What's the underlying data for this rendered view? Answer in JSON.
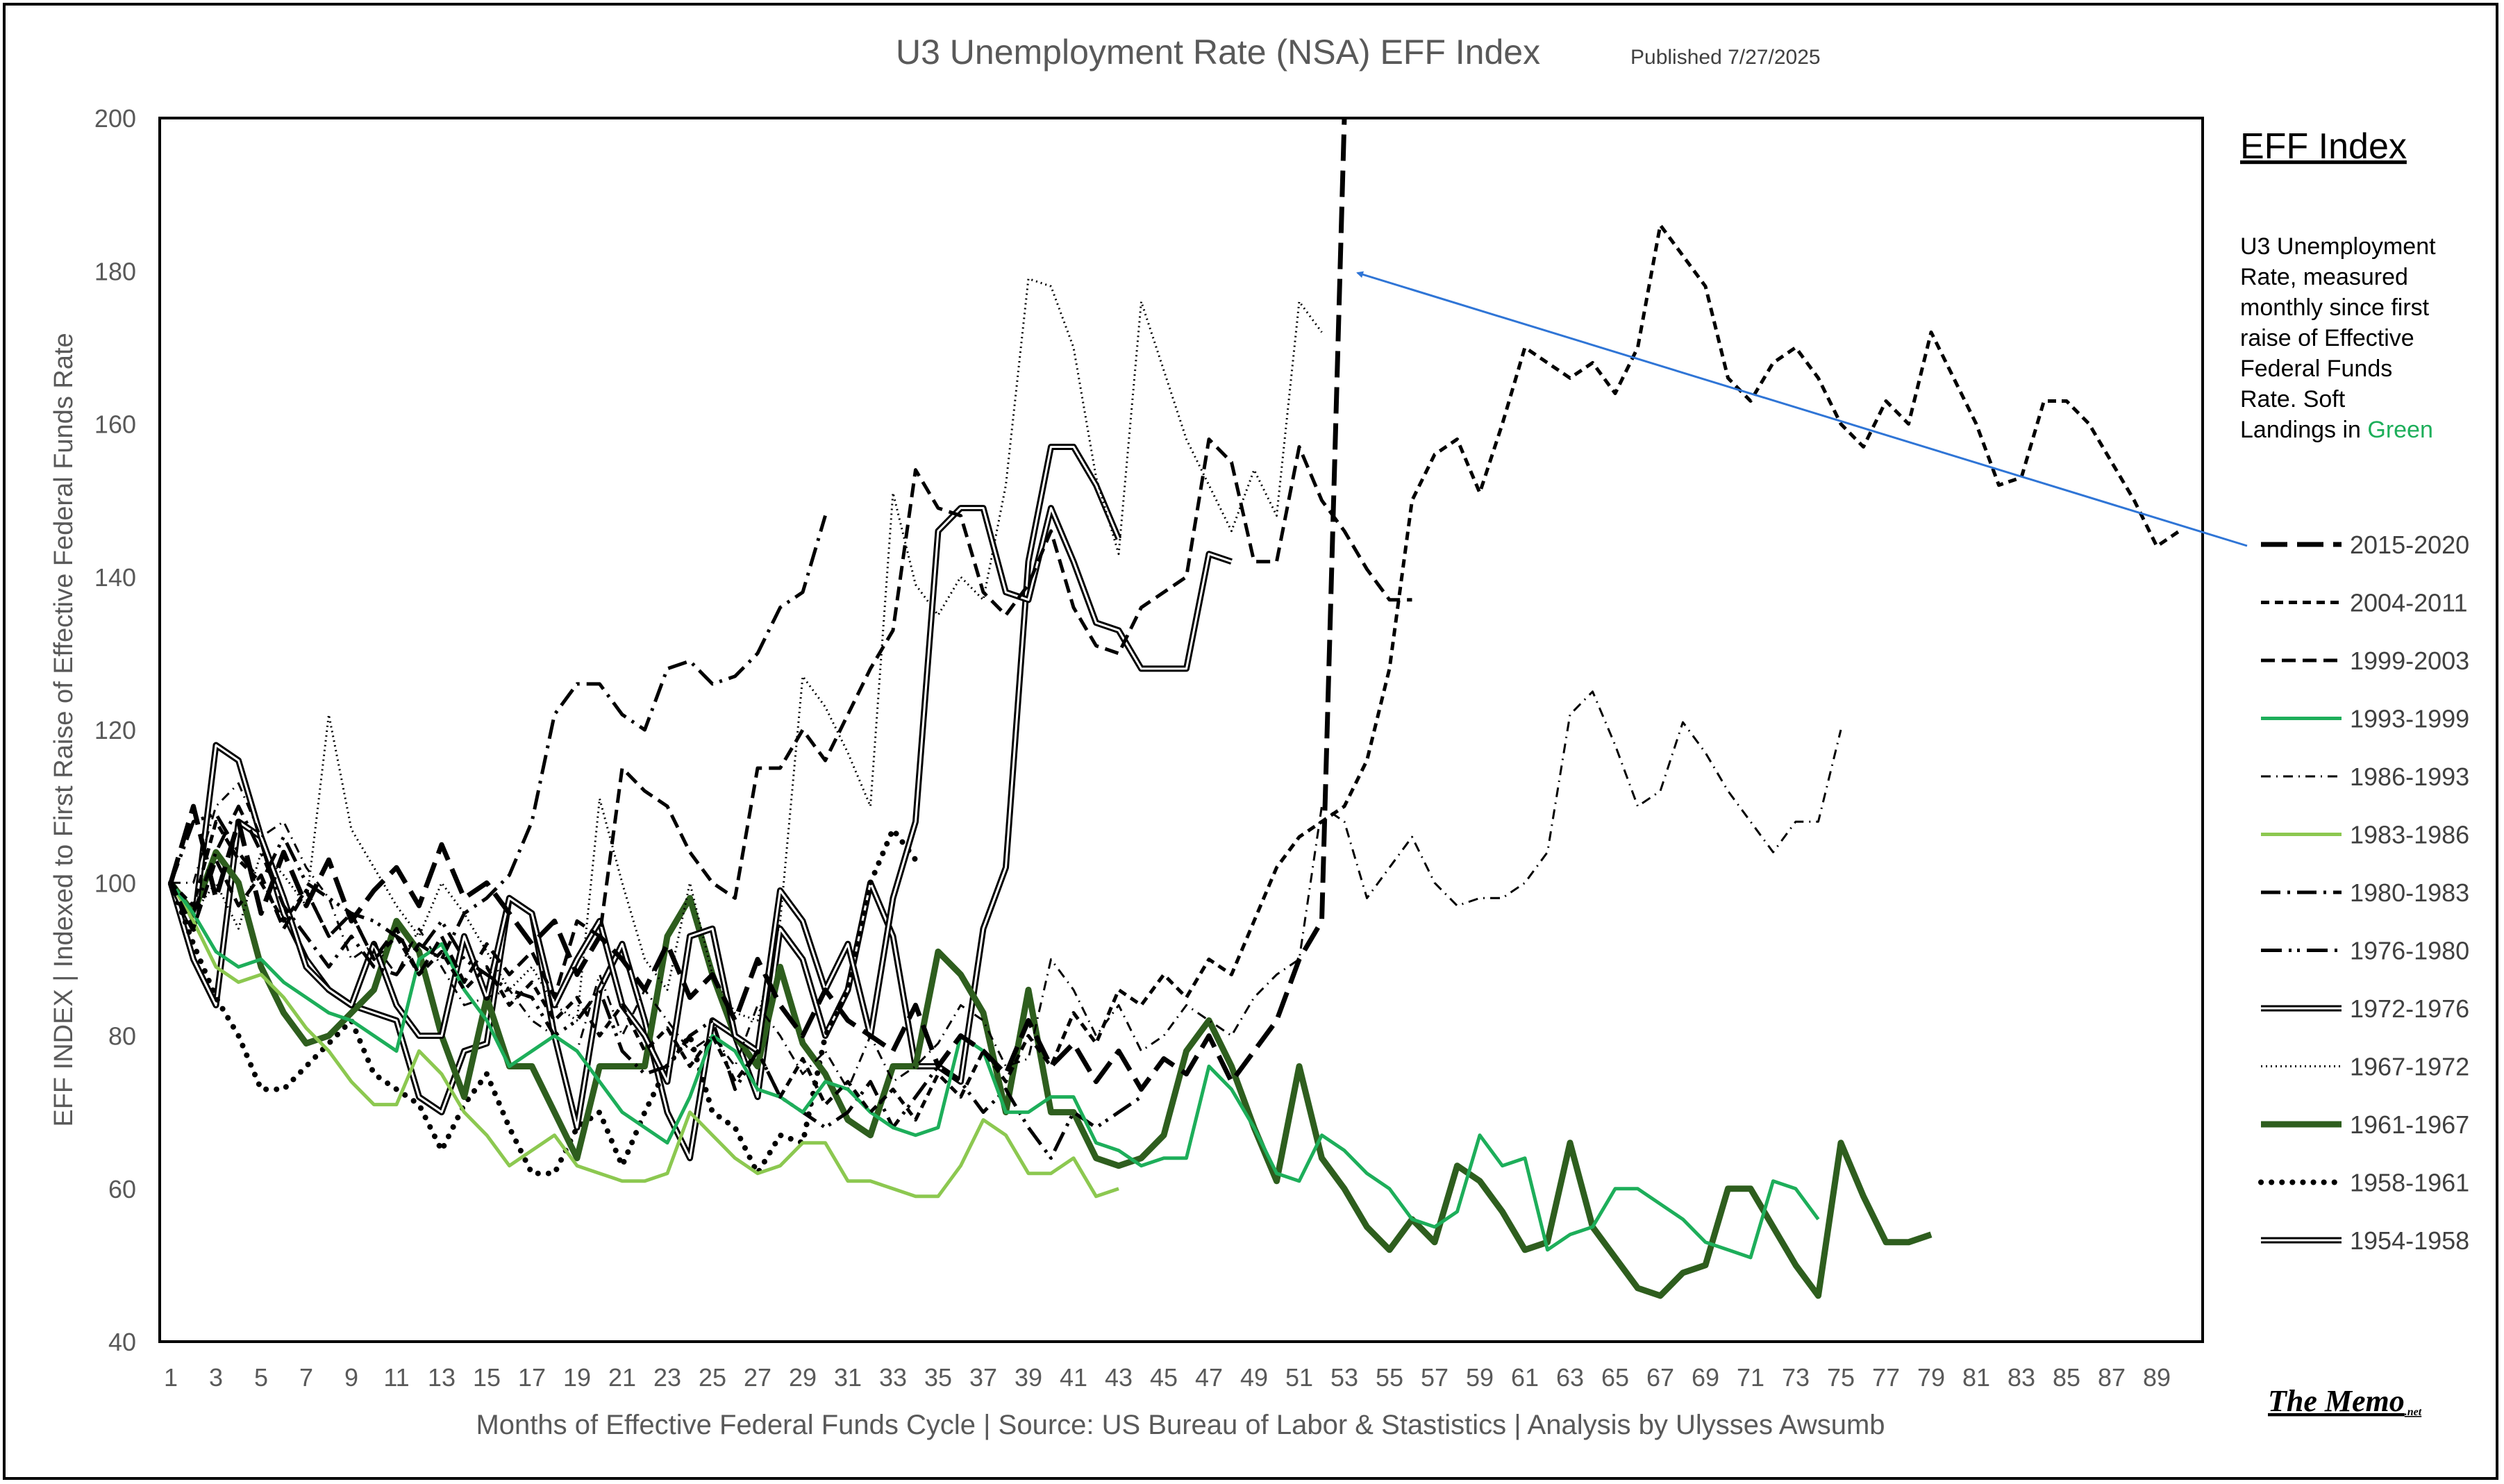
{
  "chart_data": {
    "type": "line",
    "title": "U3 Unemployment Rate (NSA) EFF Index",
    "subtitle": "Published 7/27/2025",
    "xlabel": "Months of Effective Federal Funds Cycle | Source: US Bureau of Labor & Stastistics | Analysis by Ulysses Awsumb",
    "ylabel": "EFF INDEX | Indexed to First Raise of Effective Federal Funds Rate",
    "ylim": [
      40,
      200
    ],
    "xlim": [
      1,
      91
    ],
    "y_ticks": [
      "40",
      "60",
      "80",
      "100",
      "120",
      "140",
      "160",
      "180",
      "200"
    ],
    "x_ticks": [
      "1",
      "3",
      "5",
      "7",
      "9",
      "11",
      "13",
      "15",
      "17",
      "19",
      "21",
      "23",
      "25",
      "27",
      "29",
      "31",
      "33",
      "35",
      "37",
      "39",
      "41",
      "43",
      "45",
      "47",
      "49",
      "51",
      "53",
      "55",
      "57",
      "59",
      "61",
      "63",
      "65",
      "67",
      "69",
      "71",
      "73",
      "75",
      "77",
      "79",
      "81",
      "83",
      "85",
      "87",
      "89"
    ],
    "grid": false,
    "legend_position": "right",
    "legend_title": "EFF Index",
    "note_text": "U3 Unemployment Rate, measured monthly since first raise of Effective Federal Funds Rate. Soft Landings in",
    "note_highlight": "Green",
    "watermark": "The Memo",
    "watermark_suffix": ".net",
    "colors": {
      "dark_green": "#2E5E1E",
      "green": "#1DAE5A",
      "light_green": "#8CC850",
      "black": "#000000",
      "arrow": "#2F75D6",
      "title_gray": "#595959"
    },
    "series": [
      {
        "name": "2015-2020",
        "style": "longdash",
        "color": "#000000",
        "width": 7,
        "values": [
          100,
          110,
          98,
          108,
          96,
          104,
          97,
          103,
          95,
          99,
          102,
          97,
          105,
          98,
          100,
          96,
          92,
          95,
          88,
          93,
          90,
          86,
          92,
          85,
          88,
          82,
          90,
          84,
          80,
          86,
          82,
          80,
          78,
          84,
          76,
          80,
          78,
          75,
          82,
          76,
          79,
          74,
          78,
          73,
          77,
          75,
          80,
          74,
          78,
          82,
          90,
          95,
          200
        ]
      },
      {
        "name": "2004-2011",
        "style": "shortdash",
        "color": "#000000",
        "width": 5,
        "values": [
          100,
          97,
          108,
          103,
          100,
          95,
          99,
          93,
          96,
          90,
          93,
          88,
          91,
          86,
          89,
          84,
          87,
          82,
          85,
          80,
          84,
          78,
          81,
          76,
          80,
          74,
          78,
          72,
          77,
          71,
          74,
          70,
          73,
          69,
          75,
          72,
          78,
          74,
          80,
          76,
          83,
          79,
          86,
          84,
          88,
          85,
          90,
          88,
          95,
          102,
          106,
          108,
          110,
          116,
          128,
          150,
          156,
          158,
          151,
          160,
          170,
          168,
          166,
          168,
          164,
          170,
          186,
          182,
          178,
          166,
          163,
          168,
          170,
          166,
          160,
          157,
          163,
          160,
          172,
          166,
          160,
          152,
          153,
          163,
          163,
          160,
          155,
          150,
          144,
          146
        ]
      },
      {
        "name": "1999-2003",
        "style": "dash",
        "color": "#000000",
        "width": 5,
        "values": [
          100,
          94,
          103,
          97,
          101,
          94,
          99,
          93,
          96,
          90,
          94,
          88,
          93,
          87,
          92,
          88,
          91,
          85,
          95,
          93,
          115,
          112,
          110,
          104,
          100,
          98,
          115,
          115,
          120,
          116,
          122,
          128,
          133,
          154,
          149,
          148,
          138,
          135,
          139,
          146,
          136,
          131,
          130,
          136,
          138,
          140,
          158,
          155,
          142,
          142,
          157,
          150,
          146,
          141,
          137,
          137
        ]
      },
      {
        "name": "1993-1999",
        "style": "solid",
        "color": "#1DAE5A",
        "width": 5,
        "values": [
          100,
          96,
          91,
          89,
          90,
          87,
          85,
          83,
          82,
          80,
          78,
          90,
          92,
          86,
          82,
          76,
          78,
          80,
          78,
          74,
          70,
          68,
          66,
          72,
          80,
          78,
          73,
          72,
          70,
          74,
          73,
          70,
          68,
          67,
          68,
          80,
          78,
          70,
          70,
          72,
          72,
          66,
          65,
          63,
          64,
          64,
          76,
          73,
          68,
          62,
          61,
          67,
          65,
          62,
          60,
          56,
          55,
          57,
          67,
          63,
          64,
          52,
          54,
          55,
          60,
          60,
          58,
          56,
          53,
          52,
          51,
          61,
          60,
          56
        ]
      },
      {
        "name": "1986-1993",
        "style": "dashdot",
        "color": "#000000",
        "width": 3,
        "values": [
          100,
          100,
          110,
          113,
          106,
          108,
          102,
          98,
          90,
          92,
          88,
          94,
          89,
          84,
          85,
          86,
          82,
          80,
          78,
          88,
          80,
          86,
          82,
          78,
          80,
          76,
          84,
          80,
          75,
          78,
          73,
          80,
          74,
          76,
          79,
          84,
          82,
          76,
          77,
          90,
          86,
          80,
          84,
          78,
          80,
          84,
          82,
          80,
          85,
          88,
          90,
          110,
          108,
          98,
          102,
          106,
          100,
          97,
          98,
          98,
          100,
          104,
          122,
          125,
          118,
          110,
          112,
          121,
          117,
          112,
          108,
          104,
          108,
          108,
          120
        ]
      },
      {
        "name": "1983-1986",
        "style": "solid",
        "color": "#8CC850",
        "width": 5,
        "values": [
          100,
          95,
          89,
          87,
          88,
          85,
          81,
          78,
          74,
          71,
          71,
          78,
          75,
          70,
          67,
          63,
          65,
          67,
          63,
          62,
          61,
          61,
          62,
          70,
          67,
          64,
          62,
          63,
          66,
          66,
          61,
          61,
          60,
          59,
          59,
          63,
          69,
          67,
          62,
          62,
          64,
          59,
          60
        ]
      },
      {
        "name": "1980-1983",
        "style": "dashdot",
        "color": "#000000",
        "width": 5,
        "values": [
          100,
          96,
          104,
          110,
          104,
          97,
          93,
          89,
          93,
          89,
          88,
          92,
          90,
          96,
          98,
          101,
          108,
          122,
          126,
          126,
          122,
          120,
          128,
          129,
          126,
          127,
          130,
          136,
          138,
          148
        ]
      },
      {
        "name": "1976-1980",
        "style": "dashdotdot",
        "color": "#000000",
        "width": 5,
        "values": [
          100,
          108,
          109,
          104,
          100,
          106,
          100,
          98,
          96,
          95,
          93,
          91,
          95,
          90,
          88,
          86,
          85,
          80,
          82,
          86,
          78,
          75,
          76,
          80,
          82,
          73,
          78,
          72,
          70,
          68,
          70,
          74,
          68,
          72,
          76,
          74,
          70,
          73,
          68,
          64,
          70,
          68,
          70,
          72
        ]
      },
      {
        "name": "1972-1976",
        "style": "double",
        "color": "#000000",
        "width": 6,
        "values": [
          100,
          94,
          118,
          116,
          106,
          98,
          89,
          86,
          84,
          92,
          84,
          80,
          80,
          93,
          85,
          98,
          96,
          84,
          90,
          95,
          84,
          80,
          74,
          93,
          94,
          80,
          78,
          99,
          95,
          86,
          92,
          80,
          98,
          108,
          146,
          149,
          149,
          138,
          137,
          149,
          142,
          134,
          133,
          128,
          128,
          128,
          143,
          142
        ]
      },
      {
        "name": "1967-1972",
        "style": "dotted",
        "color": "#000000",
        "width": 3,
        "values": [
          100,
          96,
          100,
          94,
          104,
          101,
          97,
          122,
          107,
          102,
          97,
          93,
          100,
          96,
          91,
          86,
          89,
          84,
          82,
          111,
          100,
          90,
          86,
          100,
          88,
          83,
          82,
          95,
          127,
          123,
          117,
          110,
          151,
          139,
          135,
          140,
          137,
          152,
          179,
          178,
          170,
          153,
          143,
          176,
          167,
          158,
          152,
          146,
          154,
          148,
          176,
          172
        ]
      },
      {
        "name": "1961-1967",
        "style": "solid",
        "color": "#2E5E1E",
        "width": 9,
        "values": [
          100,
          96,
          104,
          100,
          89,
          83,
          79,
          80,
          83,
          86,
          95,
          91,
          80,
          72,
          85,
          76,
          76,
          70,
          64,
          76,
          76,
          76,
          93,
          98,
          88,
          80,
          76,
          89,
          79,
          75,
          69,
          67,
          76,
          76,
          91,
          88,
          83,
          70,
          86,
          70,
          70,
          64,
          63,
          64,
          67,
          78,
          82,
          76,
          68,
          61,
          76,
          64,
          60,
          55,
          52,
          56,
          53,
          63,
          61,
          57,
          52,
          53,
          66,
          55,
          51,
          47,
          46,
          49,
          50,
          60,
          60,
          55,
          50,
          46,
          66,
          59,
          53,
          53,
          54
        ]
      },
      {
        "name": "1958-1961",
        "style": "dotted",
        "color": "#000000",
        "width": 8,
        "values": [
          100,
          92,
          85,
          80,
          73,
          73,
          76,
          79,
          82,
          75,
          73,
          71,
          65,
          71,
          75,
          68,
          62,
          62,
          68,
          70,
          63,
          70,
          76,
          80,
          70,
          68,
          62,
          67,
          66,
          80,
          86,
          100,
          107,
          103
        ]
      },
      {
        "name": "1954-1958",
        "style": "double",
        "color": "#000000",
        "width": 6,
        "values": [
          100,
          90,
          84,
          108,
          106,
          96,
          90,
          86,
          84,
          83,
          82,
          72,
          70,
          78,
          79,
          98,
          96,
          80,
          68,
          86,
          92,
          82,
          70,
          64,
          82,
          80,
          72,
          94,
          90,
          80,
          86,
          100,
          93,
          76,
          76,
          74,
          94,
          102,
          142,
          157,
          157,
          152,
          145
        ]
      }
    ]
  }
}
